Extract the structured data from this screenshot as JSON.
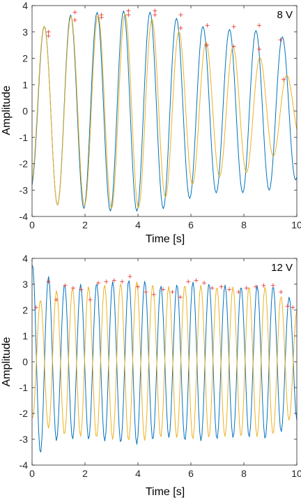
{
  "colors": {
    "blue": "#0072BD",
    "orange": "#EDB120",
    "marker": "#E8413C",
    "axis": "#262626"
  },
  "chart_data": [
    {
      "type": "line",
      "annotation": "8 V",
      "xlabel": "Time [s]",
      "ylabel": "Amplitude",
      "xlim": [
        0,
        10
      ],
      "ylim": [
        -4,
        4
      ],
      "xticks": [
        0,
        2,
        4,
        6,
        8,
        10
      ],
      "yticks": [
        -4,
        -3,
        -2,
        -1,
        0,
        1,
        2,
        3,
        4
      ],
      "grid": false,
      "series": [
        {
          "color": "#0072BD",
          "frequency_hz": 1.0,
          "phase_rad": -1.3,
          "envelope": {
            "x": [
              0,
              1,
              2,
              3,
              4,
              5,
              6,
              7,
              8,
              9,
              10
            ],
            "y": [
              2.9,
              3.6,
              3.7,
              3.8,
              3.8,
              3.7,
              3.3,
              3.1,
              3.1,
              3.0,
              2.6
            ]
          }
        },
        {
          "color": "#EDB120",
          "frequency_hz": 0.98,
          "phase_rad": -1.2,
          "envelope": {
            "x": [
              0,
              1,
              2,
              3,
              4,
              5,
              6,
              7,
              8,
              9,
              10
            ],
            "y": [
              2.9,
              3.6,
              3.6,
              3.7,
              3.7,
              3.3,
              2.8,
              2.5,
              2.4,
              1.8,
              1.1
            ]
          }
        }
      ],
      "peaks": [
        {
          "x": 0.62,
          "y": 3.0
        },
        {
          "x": 0.62,
          "y": 2.85
        },
        {
          "x": 1.62,
          "y": 3.75
        },
        {
          "x": 1.62,
          "y": 3.45
        },
        {
          "x": 2.62,
          "y": 3.65
        },
        {
          "x": 2.62,
          "y": 3.55
        },
        {
          "x": 3.64,
          "y": 3.8
        },
        {
          "x": 3.64,
          "y": 3.65
        },
        {
          "x": 4.64,
          "y": 3.8
        },
        {
          "x": 4.64,
          "y": 3.65
        },
        {
          "x": 5.62,
          "y": 3.65
        },
        {
          "x": 5.62,
          "y": 3.15
        },
        {
          "x": 6.62,
          "y": 3.25
        },
        {
          "x": 6.6,
          "y": 2.5
        },
        {
          "x": 7.62,
          "y": 3.2
        },
        {
          "x": 7.62,
          "y": 2.45
        },
        {
          "x": 8.58,
          "y": 3.25
        },
        {
          "x": 8.58,
          "y": 2.35
        },
        {
          "x": 9.38,
          "y": 2.7
        },
        {
          "x": 9.5,
          "y": 1.2
        }
      ]
    },
    {
      "type": "line",
      "annotation": "12 V",
      "xlabel": "Time [s]",
      "ylabel": "Amplitude",
      "xlim": [
        0,
        10
      ],
      "ylim": [
        -4,
        4
      ],
      "xticks": [
        0,
        2,
        4,
        6,
        8,
        10
      ],
      "yticks": [
        -4,
        -3,
        -2,
        -1,
        0,
        1,
        2,
        3,
        4
      ],
      "grid": false,
      "series": [
        {
          "color": "#0072BD",
          "frequency_hz": 1.65,
          "phase_rad": 1.4,
          "envelope": {
            "x": [
              0,
              1,
              2,
              3,
              4,
              5,
              6,
              7,
              8,
              9,
              10
            ],
            "y": [
              3.8,
              3.0,
              3.0,
              3.1,
              3.2,
              2.9,
              3.1,
              3.0,
              2.9,
              3.0,
              2.3
            ]
          }
        },
        {
          "color": "#EDB120",
          "frequency_hz": 1.65,
          "phase_rad": -1.7,
          "envelope": {
            "x": [
              0,
              1,
              2,
              3,
              4,
              5,
              6,
              7,
              8,
              9,
              10
            ],
            "y": [
              2.2,
              2.8,
              2.9,
              3.0,
              3.1,
              2.9,
              3.0,
              2.9,
              2.9,
              2.9,
              2.0
            ]
          }
        }
      ],
      "peaks": [
        {
          "x": 0.15,
          "y": 2.1
        },
        {
          "x": 0.62,
          "y": 3.1
        },
        {
          "x": 0.92,
          "y": 2.4
        },
        {
          "x": 1.25,
          "y": 2.95
        },
        {
          "x": 1.55,
          "y": 2.85
        },
        {
          "x": 1.85,
          "y": 2.8
        },
        {
          "x": 2.2,
          "y": 2.4
        },
        {
          "x": 2.5,
          "y": 3.05
        },
        {
          "x": 2.8,
          "y": 3.1
        },
        {
          "x": 3.1,
          "y": 3.15
        },
        {
          "x": 3.4,
          "y": 3.1
        },
        {
          "x": 3.7,
          "y": 3.3
        },
        {
          "x": 4.0,
          "y": 2.9
        },
        {
          "x": 4.3,
          "y": 2.7
        },
        {
          "x": 4.6,
          "y": 2.6
        },
        {
          "x": 4.95,
          "y": 2.8
        },
        {
          "x": 5.3,
          "y": 2.7
        },
        {
          "x": 5.6,
          "y": 2.5
        },
        {
          "x": 5.9,
          "y": 3.1
        },
        {
          "x": 6.2,
          "y": 3.15
        },
        {
          "x": 6.5,
          "y": 3.05
        },
        {
          "x": 6.8,
          "y": 2.85
        },
        {
          "x": 7.15,
          "y": 2.9
        },
        {
          "x": 7.45,
          "y": 2.8
        },
        {
          "x": 7.8,
          "y": 2.7
        },
        {
          "x": 8.1,
          "y": 2.85
        },
        {
          "x": 8.45,
          "y": 2.9
        },
        {
          "x": 8.75,
          "y": 2.95
        },
        {
          "x": 9.1,
          "y": 2.95
        },
        {
          "x": 9.4,
          "y": 2.7
        },
        {
          "x": 9.65,
          "y": 2.15
        },
        {
          "x": 9.85,
          "y": 2.1
        }
      ]
    }
  ]
}
